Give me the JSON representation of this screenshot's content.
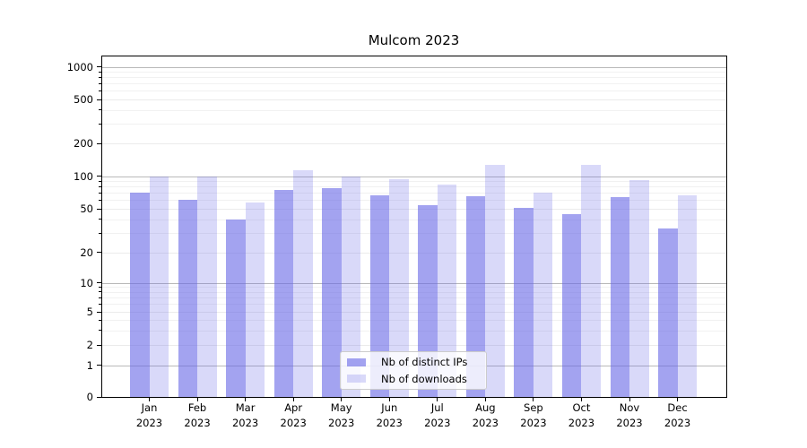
{
  "chart_data": {
    "type": "bar",
    "title": "Mulcom 2023",
    "x_categories": [
      "Jan",
      "Feb",
      "Mar",
      "Apr",
      "May",
      "Jun",
      "Jul",
      "Aug",
      "Sep",
      "Oct",
      "Nov",
      "Dec"
    ],
    "x_year": "2023",
    "series": [
      {
        "name": "Nb of distinct IPs",
        "color": "rgba(102,102,230,0.6)",
        "values": [
          70,
          60,
          40,
          75,
          77,
          66,
          54,
          65,
          51,
          45,
          64,
          33
        ]
      },
      {
        "name": "Nb of downloads",
        "color": "rgba(102,102,230,0.25)",
        "values": [
          100,
          100,
          57,
          114,
          100,
          93,
          83,
          126,
          70,
          128,
          92,
          66
        ]
      }
    ],
    "y_axis": {
      "scale": "symlog",
      "ticks": [
        0,
        1,
        2,
        5,
        10,
        20,
        50,
        100,
        200,
        500,
        1000
      ],
      "ylim": [
        0,
        1230
      ]
    },
    "legend": {
      "position": "lower center"
    },
    "grid": true,
    "colors": {
      "grid_major": "#b9b9b9",
      "grid_minor": "#ebebeb",
      "grid_faint": "#f1f1f1"
    }
  }
}
